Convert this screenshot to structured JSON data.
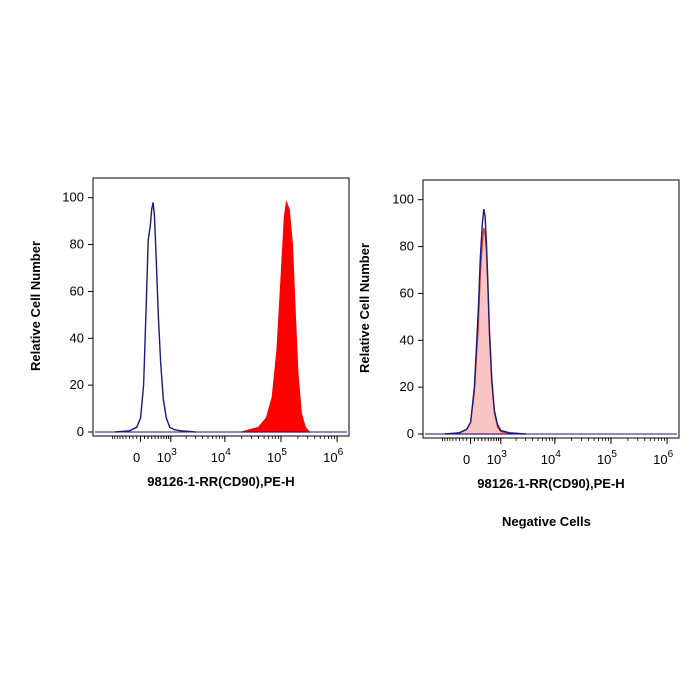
{
  "colors": {
    "negative_control": "#1a1a7a",
    "sample_fill": "#ff0000",
    "sample_edge": "#cc0000",
    "negative_cells_fill": "#f9c4c4",
    "negative_cells_edge": "#e03030"
  },
  "chart_data": [
    {
      "type": "histogram",
      "xlabel": "98126-1-RR(CD90),PE-H",
      "ylabel": "Relative Cell Number",
      "y_ticks": [
        0,
        20,
        40,
        60,
        80,
        100
      ],
      "ylim": [
        0,
        105
      ],
      "x_ticks": [
        {
          "base": "0",
          "exp": ""
        },
        {
          "base": "10",
          "exp": "3"
        },
        {
          "base": "10",
          "exp": "4"
        },
        {
          "base": "10",
          "exp": "5"
        },
        {
          "base": "10",
          "exp": "6"
        }
      ],
      "x_scale": "biexponential",
      "series": [
        {
          "style": "outline",
          "color": "#1a1a7a",
          "points": [
            [
              -800,
              0
            ],
            [
              -300,
              0.5
            ],
            [
              -100,
              2
            ],
            [
              0,
              6
            ],
            [
              80,
              20
            ],
            [
              150,
              55
            ],
            [
              200,
              82
            ],
            [
              260,
              88
            ],
            [
              300,
              95
            ],
            [
              340,
              98
            ],
            [
              380,
              92
            ],
            [
              430,
              75
            ],
            [
              500,
              50
            ],
            [
              580,
              30
            ],
            [
              680,
              14
            ],
            [
              800,
              6
            ],
            [
              950,
              2
            ],
            [
              1200,
              1
            ],
            [
              1600,
              0.5
            ],
            [
              3000,
              0
            ]
          ]
        },
        {
          "style": "filled",
          "color": "#ff0000",
          "points": [
            [
              20000,
              0
            ],
            [
              40000,
              2
            ],
            [
              55000,
              6
            ],
            [
              70000,
              15
            ],
            [
              85000,
              35
            ],
            [
              100000,
              65
            ],
            [
              115000,
              92
            ],
            [
              125000,
              98
            ],
            [
              140000,
              95
            ],
            [
              160000,
              80
            ],
            [
              180000,
              50
            ],
            [
              200000,
              25
            ],
            [
              230000,
              8
            ],
            [
              270000,
              2
            ],
            [
              320000,
              0
            ]
          ]
        }
      ]
    },
    {
      "type": "histogram",
      "xlabel": "98126-1-RR(CD90),PE-H",
      "ylabel": "Relative Cell Number",
      "title": "Negative Cells",
      "y_ticks": [
        0,
        20,
        40,
        60,
        80,
        100
      ],
      "ylim": [
        0,
        105
      ],
      "x_ticks": [
        {
          "base": "0",
          "exp": ""
        },
        {
          "base": "10",
          "exp": "3"
        },
        {
          "base": "10",
          "exp": "4"
        },
        {
          "base": "10",
          "exp": "5"
        },
        {
          "base": "10",
          "exp": "6"
        }
      ],
      "x_scale": "biexponential",
      "series": [
        {
          "style": "filled",
          "color": "#f9c4c4",
          "edge": "#e03030",
          "points": [
            [
              -800,
              0
            ],
            [
              -300,
              0.5
            ],
            [
              -100,
              2
            ],
            [
              0,
              5
            ],
            [
              100,
              18
            ],
            [
              200,
              45
            ],
            [
              260,
              68
            ],
            [
              320,
              82
            ],
            [
              360,
              88
            ],
            [
              400,
              85
            ],
            [
              440,
              78
            ],
            [
              480,
              65
            ],
            [
              540,
              42
            ],
            [
              620,
              22
            ],
            [
              720,
              9
            ],
            [
              850,
              3
            ],
            [
              1000,
              1
            ],
            [
              1500,
              0.3
            ],
            [
              3000,
              0
            ]
          ]
        },
        {
          "style": "outline",
          "color": "#1a1a7a",
          "points": [
            [
              -800,
              0
            ],
            [
              -300,
              0.5
            ],
            [
              -100,
              2
            ],
            [
              0,
              5
            ],
            [
              100,
              20
            ],
            [
              200,
              52
            ],
            [
              260,
              75
            ],
            [
              320,
              90
            ],
            [
              360,
              96
            ],
            [
              400,
              93
            ],
            [
              440,
              82
            ],
            [
              480,
              68
            ],
            [
              540,
              45
            ],
            [
              620,
              24
            ],
            [
              720,
              10
            ],
            [
              850,
              4
            ],
            [
              1000,
              1.5
            ],
            [
              1500,
              0.5
            ],
            [
              3000,
              0
            ]
          ]
        }
      ]
    }
  ]
}
